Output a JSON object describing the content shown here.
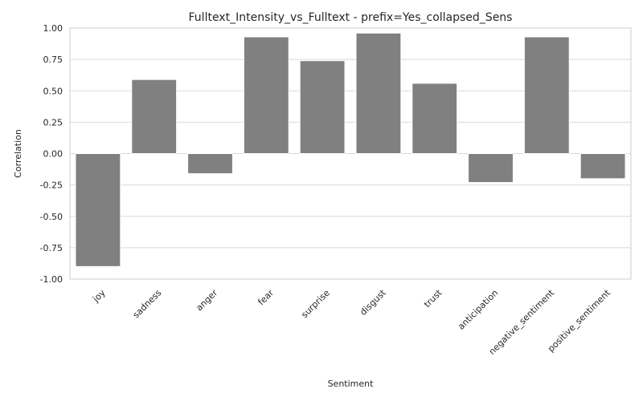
{
  "chart_data": {
    "type": "bar",
    "title": "Fulltext_Intensity_vs_Fulltext - prefix=Yes_collapsed_Sens",
    "xlabel": "Sentiment",
    "ylabel": "Correlation",
    "categories": [
      "joy",
      "sadness",
      "anger",
      "fear",
      "surprise",
      "disgust",
      "trust",
      "anticipation",
      "negative_sentiment",
      "positive_sentiment"
    ],
    "values": [
      -0.9,
      0.59,
      -0.16,
      0.93,
      0.74,
      0.96,
      0.56,
      -0.23,
      0.93,
      -0.2
    ],
    "ylim": [
      -1.0,
      1.0
    ],
    "yticks": [
      "-1.00",
      "-0.75",
      "-0.50",
      "-0.25",
      "0.00",
      "0.25",
      "0.50",
      "0.75",
      "1.00"
    ],
    "ytick_values": [
      -1.0,
      -0.75,
      -0.5,
      -0.25,
      0.0,
      0.25,
      0.5,
      0.75,
      1.0
    ],
    "grid": true,
    "bar_color": "#808080"
  }
}
